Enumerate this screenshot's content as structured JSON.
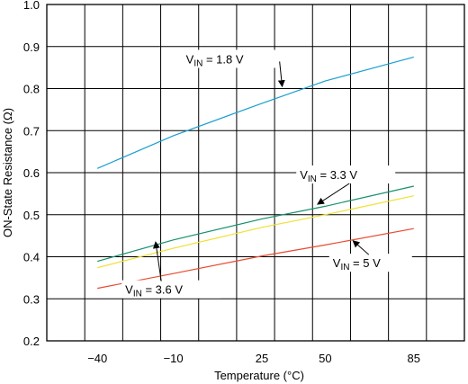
{
  "chart_data": {
    "type": "line",
    "title": "",
    "xlabel": "Temperature (°C)",
    "ylabel": "ON-State Resistance (Ω)",
    "xlim": [
      -60,
      105
    ],
    "ylim": [
      0.2,
      1.0
    ],
    "xticks": [
      -40,
      -10,
      25,
      50,
      85
    ],
    "xtick_labels": [
      "−40",
      "−10",
      "25",
      "50",
      "85"
    ],
    "yticks": [
      0.2,
      0.3,
      0.4,
      0.5,
      0.6,
      0.7,
      0.8,
      0.9,
      1.0
    ],
    "ytick_labels": [
      "0.2",
      "0.3",
      "0.4",
      "0.5",
      "0.6",
      "0.7",
      "0.8",
      "0.9",
      "1.0"
    ],
    "x_grid": [
      -60,
      -45,
      -30,
      -15,
      0,
      15,
      30,
      45,
      60,
      75,
      90,
      105
    ],
    "y_grid": [
      0.2,
      0.3,
      0.4,
      0.5,
      0.6,
      0.7,
      0.8,
      0.9,
      1.0
    ],
    "grid": true,
    "x": [
      -40,
      -10,
      25,
      50,
      85
    ],
    "series": [
      {
        "color": "#1a9fd0",
        "values": [
          0.61,
          0.688,
          0.765,
          0.818,
          0.875
        ]
      },
      {
        "color": "#15906a",
        "values": [
          0.389,
          0.44,
          0.49,
          0.52,
          0.568
        ]
      },
      {
        "color": "#f0e030",
        "values": [
          0.374,
          0.42,
          0.47,
          0.5,
          0.545
        ]
      },
      {
        "color": "#e84a30",
        "values": [
          0.325,
          0.36,
          0.402,
          0.428,
          0.467
        ]
      }
    ],
    "annotations": [
      {
        "main": "V",
        "sub": "IN",
        "text": " = 1.8 V"
      },
      {
        "main": "V",
        "sub": "IN",
        "text": " = 3.3 V"
      },
      {
        "main": "V",
        "sub": "IN",
        "text": " = 3.6 V"
      },
      {
        "main": "V",
        "sub": "IN",
        "text": " = 5 V"
      }
    ]
  }
}
